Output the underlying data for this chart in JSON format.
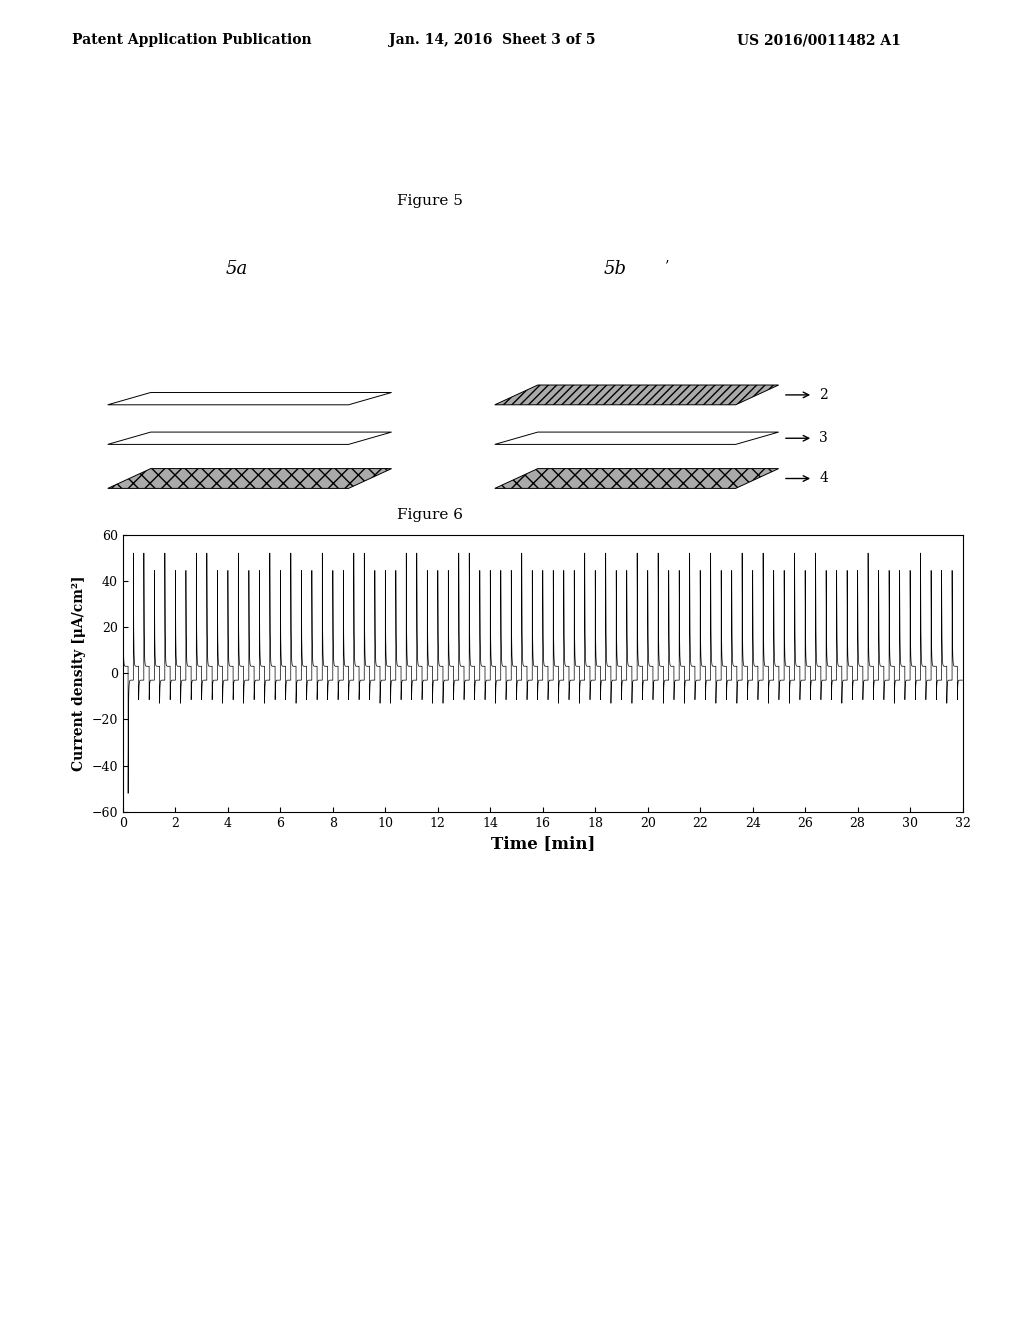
{
  "background_color": "#ffffff",
  "header_left": "Patent Application Publication",
  "header_center": "Jan. 14, 2016  Sheet 3 of 5",
  "header_right": "US 2016/0011482 A1",
  "header_fontsize": 10,
  "fig5_title": "Figure 5",
  "fig6_title": "Figure 6",
  "fig5a_label": "5a",
  "fig5b_label": "5b",
  "fig5b_tick": "’",
  "layer_labels": [
    "2",
    "3",
    "4"
  ],
  "graph_xlabel": "Time [min]",
  "graph_ylabel": "Current density [μA/cm²]",
  "graph_xlim": [
    0,
    32
  ],
  "graph_ylim": [
    -60,
    60
  ],
  "graph_xticks": [
    0,
    2,
    4,
    6,
    8,
    10,
    12,
    14,
    16,
    18,
    20,
    22,
    24,
    26,
    28,
    30,
    32
  ],
  "graph_yticks": [
    -60,
    -40,
    -20,
    0,
    20,
    40,
    60
  ],
  "line_color": "#000000",
  "line_width": 0.5
}
